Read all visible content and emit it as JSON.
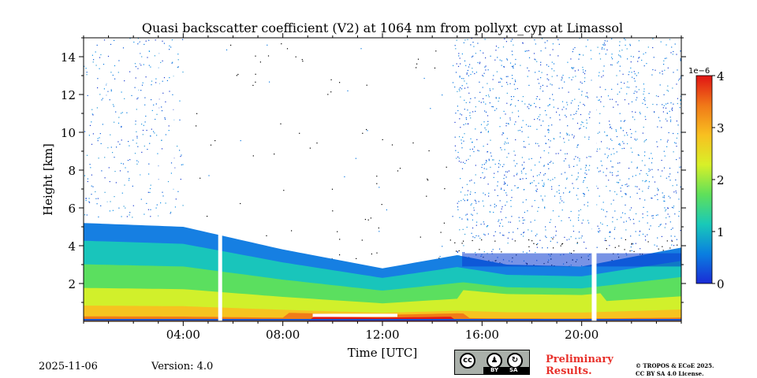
{
  "chart_data": {
    "type": "heatmap",
    "title": "Quasi backscatter coefficient (V2) at 1064 nm from pollyxt_cyp at Limassol",
    "xlabel": "Time [UTC]",
    "ylabel": "Height [km]",
    "xlim": [
      0,
      24
    ],
    "ylim": [
      0,
      15
    ],
    "xticks": [
      4,
      8,
      12,
      16,
      20
    ],
    "xtick_labels": [
      "04:00",
      "08:00",
      "12:00",
      "16:00",
      "20:00"
    ],
    "yticks": [
      2,
      4,
      6,
      8,
      10,
      12,
      14
    ],
    "ytick_labels": [
      "2",
      "4",
      "6",
      "8",
      "10",
      "12",
      "14"
    ],
    "colorbar": {
      "min": 0,
      "max": 4,
      "multiplier": "1e−6",
      "ticks": [
        0,
        1,
        2,
        3,
        4
      ],
      "tick_labels": [
        "0",
        "1",
        "2",
        "3",
        "4"
      ],
      "colors": [
        "#1a2bd6",
        "#0a7fe0",
        "#19c9b8",
        "#5fe05a",
        "#d8f028",
        "#f8c020",
        "#f07818",
        "#e01414"
      ]
    },
    "data_gaps_utc_hours": [
      5.5,
      20.5
    ],
    "aerosol_layer_top_km": [
      {
        "t": 0,
        "h": 5.2
      },
      {
        "t": 4,
        "h": 5.0
      },
      {
        "t": 8,
        "h": 3.8
      },
      {
        "t": 12,
        "h": 2.8
      },
      {
        "t": 15,
        "h": 3.5
      },
      {
        "t": 17,
        "h": 3.0
      },
      {
        "t": 20,
        "h": 2.9
      },
      {
        "t": 24,
        "h": 3.9
      }
    ]
  },
  "footer": {
    "date": "2025-11-06",
    "version": "Version: 4.0",
    "license_badge": {
      "cc": "cc",
      "by": "BY",
      "sa": "SA"
    },
    "preliminary": [
      "Preliminary",
      "Results."
    ],
    "copyright": [
      "© TROPOS & ECoE 2025.",
      "CC BY SA 4.0 License."
    ]
  }
}
